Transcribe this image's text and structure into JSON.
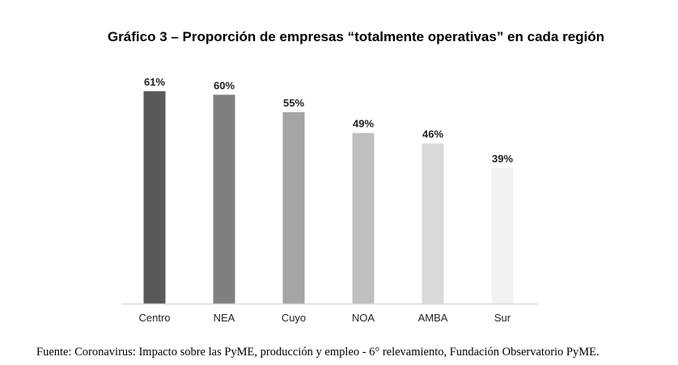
{
  "chart_data": {
    "type": "bar",
    "title": "Gráfico 3 – Proporción de empresas “totalmente operativas” en cada región",
    "categories": [
      "Centro",
      "NEA",
      "Cuyo",
      "NOA",
      "AMBA",
      "Sur"
    ],
    "values": [
      61,
      60,
      55,
      49,
      46,
      39
    ],
    "value_labels": [
      "61%",
      "60%",
      "55%",
      "49%",
      "46%",
      "39%"
    ],
    "colors": [
      "#595959",
      "#7f7f7f",
      "#a5a5a5",
      "#bfbfbf",
      "#d9d9d9",
      "#f2f2f2"
    ],
    "xlabel": "",
    "ylabel": "",
    "ylim": [
      0,
      61
    ],
    "grid": false,
    "legend": "none"
  },
  "source": "Fuente: Coronavirus: Impacto sobre las PyME, producción y empleo - 6° relevamiento, Fundación Observatorio PyME."
}
